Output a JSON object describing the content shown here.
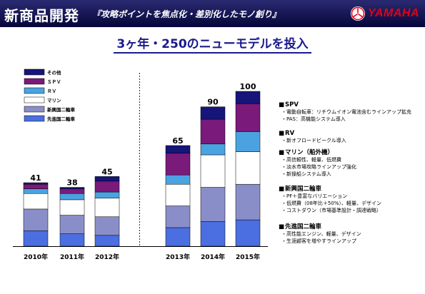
{
  "header": {
    "title": "新商品開発",
    "subtitle": "『攻略ポイントを焦点化・差別化したモノ創り』",
    "logo_text": "YAMAHA"
  },
  "headline": "3ヶ年・250のニューモデルを投入",
  "chart_data": {
    "type": "bar",
    "stacked": true,
    "categories": [
      "2010年",
      "2011年",
      "2012年",
      "2013年",
      "2014年",
      "2015年"
    ],
    "totals": [
      41,
      38,
      45,
      65,
      90,
      100
    ],
    "series": [
      {
        "name": "先進国二輪車",
        "color": "#4b6fe0",
        "values": [
          10,
          8,
          7,
          12,
          16,
          17
        ]
      },
      {
        "name": "新興国二輪車",
        "color": "#8a8ec8",
        "values": [
          14,
          12,
          12,
          14,
          22,
          23
        ]
      },
      {
        "name": "マリン",
        "color": "#ffffff",
        "values": [
          10,
          10,
          12,
          14,
          21,
          21
        ]
      },
      {
        "name": "ＲＶ",
        "color": "#4aa3e0",
        "values": [
          3,
          4,
          4,
          6,
          7,
          13
        ]
      },
      {
        "name": "ＳＰＶ",
        "color": "#7a1a7a",
        "values": [
          3,
          3,
          7,
          14,
          16,
          18
        ]
      },
      {
        "name": "その他",
        "color": "#15157a",
        "values": [
          1,
          1,
          3,
          5,
          8,
          8
        ]
      }
    ],
    "legend_order": [
      "その他",
      "ＳＰＶ",
      "ＲＶ",
      "マリン",
      "新興国二輪車",
      "先進国二輪車"
    ],
    "legend_position": "top-left"
  },
  "annotations": [
    {
      "head": "SPV",
      "items": [
        "電動自転車：リチウムイオン電池含むラインアップ拡充",
        "PAS：高機能システム導入"
      ]
    },
    {
      "head": "RV",
      "items": [
        "新オフロードビークル導入"
      ]
    },
    {
      "head": "マリン（船外機）",
      "items": [
        "高信頼性、軽量、低燃費",
        "淡水市場攻略ラインアップ強化",
        "新操船システム導入"
      ]
    },
    {
      "head": "新興国二輪車",
      "items": [
        "PF＋豊富なバリエーション",
        "低燃費（08年比＋50%）、軽量、デザイン",
        "コストダウン（市場基準設計・調達戦略）"
      ]
    },
    {
      "head": "先進国二輪車",
      "items": [
        "高性能エンジン、軽量、デザイン",
        "生涯顧客を増やすラインアップ"
      ]
    }
  ]
}
